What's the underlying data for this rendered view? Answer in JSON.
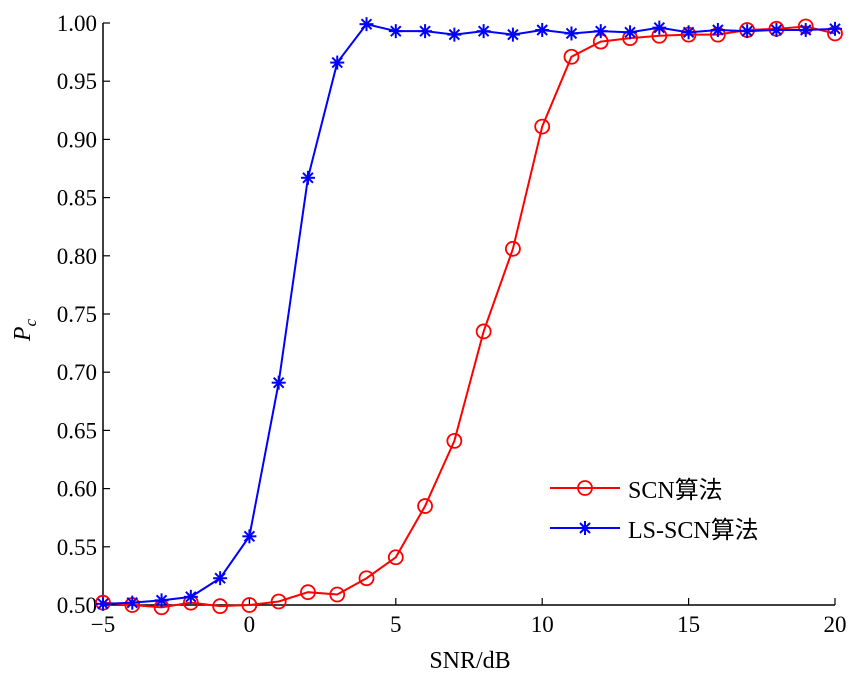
{
  "chart_data": {
    "type": "line",
    "title": "",
    "xlabel": "SNR/dB",
    "ylabel": "P",
    "ylabel_sub": "c",
    "xlim": [
      -5,
      20
    ],
    "ylim": [
      0.5,
      1.0
    ],
    "xticks": [
      "−5",
      "0",
      "5",
      "10",
      "15",
      "20"
    ],
    "xtick_values": [
      -5,
      0,
      5,
      10,
      15,
      20
    ],
    "yticks": [
      "0.50",
      "0.55",
      "0.60",
      "0.65",
      "0.70",
      "0.75",
      "0.80",
      "0.85",
      "0.90",
      "0.95",
      "1.00"
    ],
    "ytick_values": [
      0.5,
      0.55,
      0.6,
      0.65,
      0.7,
      0.75,
      0.8,
      0.85,
      0.9,
      0.95,
      1.0
    ],
    "grid": false,
    "legend_position": "bottom-right",
    "x": [
      -5,
      -4,
      -3,
      -2,
      -1,
      0,
      1,
      2,
      3,
      4,
      5,
      6,
      7,
      8,
      9,
      10,
      11,
      12,
      13,
      14,
      15,
      16,
      17,
      18,
      19,
      20
    ],
    "series": [
      {
        "name": "SCN算法",
        "color": "#ff0000",
        "marker": "circle",
        "values": [
          0.502,
          0.5,
          0.498,
          0.502,
          0.499,
          0.5,
          0.503,
          0.511,
          0.509,
          0.523,
          0.541,
          0.585,
          0.641,
          0.735,
          0.806,
          0.911,
          0.971,
          0.984,
          0.987,
          0.989,
          0.99,
          0.99,
          0.994,
          0.995,
          0.997,
          0.991
        ]
      },
      {
        "name": "LS-SCN算法",
        "color": "#0000ff",
        "marker": "asterisk",
        "values": [
          0.501,
          0.502,
          0.504,
          0.507,
          0.523,
          0.559,
          0.691,
          0.867,
          0.966,
          0.999,
          0.993,
          0.993,
          0.99,
          0.993,
          0.99,
          0.994,
          0.991,
          0.993,
          0.992,
          0.996,
          0.992,
          0.994,
          0.993,
          0.994,
          0.994,
          0.995
        ]
      }
    ]
  }
}
